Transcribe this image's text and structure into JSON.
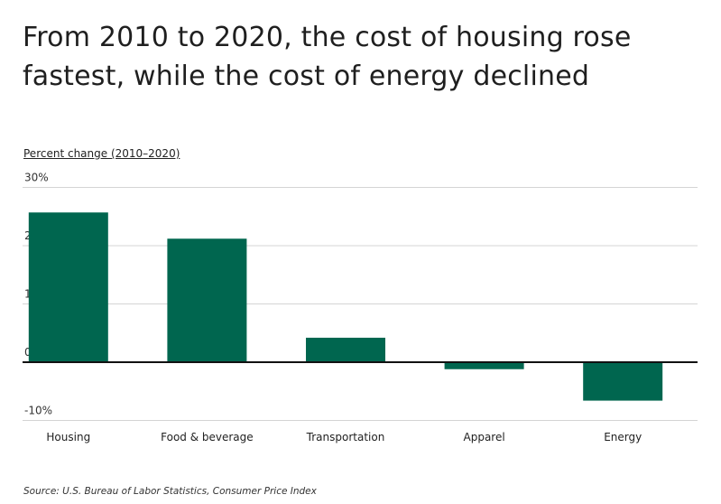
{
  "chart_data": {
    "type": "bar",
    "title": "From 2010 to 2020, the cost of housing rose fastest, while the cost of energy declined",
    "ylabel": "Percent change (2010–2020)",
    "xlabel": "",
    "categories": [
      "Housing",
      "Food & beverage",
      "Transportation",
      "Apparel",
      "Energy"
    ],
    "values": [
      25.7,
      21.2,
      4.2,
      -1.2,
      -6.6
    ],
    "ylim": [
      -10,
      30
    ],
    "yticks": [
      30,
      20,
      10,
      0,
      -10
    ],
    "ytick_labels": [
      "30%",
      "20%",
      "10%",
      "0",
      "-10%"
    ],
    "grid": true,
    "bar_color": "#00664f",
    "source": "Source:  U.S. Bureau of Labor Statistics, Consumer Price Index"
  }
}
